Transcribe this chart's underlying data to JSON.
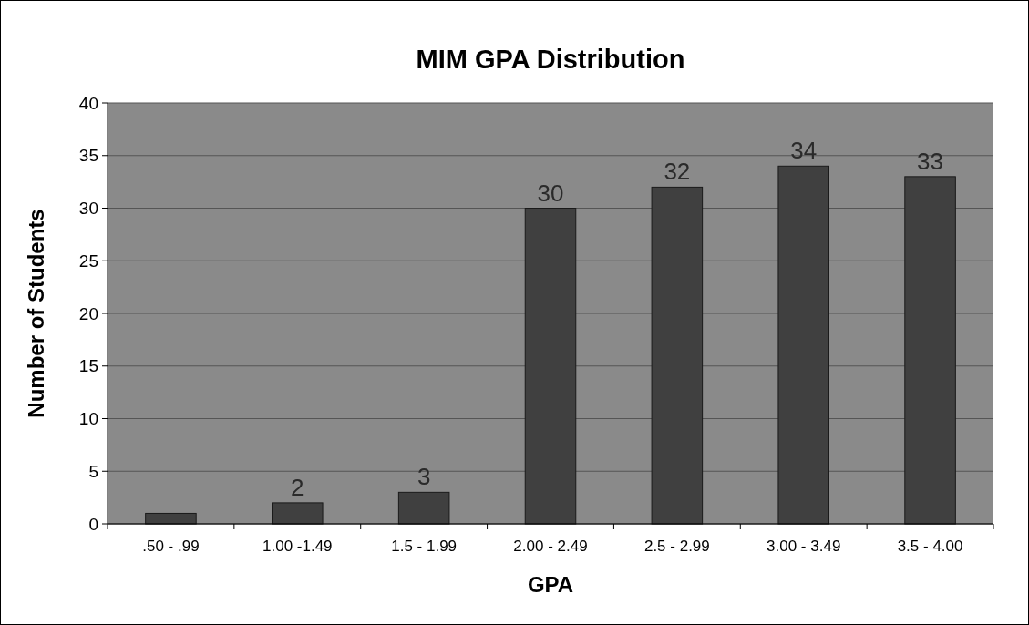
{
  "chart_data": {
    "type": "bar",
    "title": "MIM GPA Distribution",
    "xlabel": "GPA",
    "ylabel": "Number of Students",
    "categories": [
      ".50 - .99",
      "1.00 -1.49",
      "1.5 - 1.99",
      "2.00 - 2.49",
      "2.5 - 2.99",
      "3.00 - 3.49",
      "3.5 - 4.00"
    ],
    "values": [
      1,
      2,
      3,
      30,
      32,
      34,
      33
    ],
    "value_labels": [
      null,
      "2",
      "3",
      "30",
      "32",
      "34",
      "33"
    ],
    "color": "#404040",
    "ylim": [
      0,
      40
    ],
    "yticks": [
      0,
      5,
      10,
      15,
      20,
      25,
      30,
      35,
      40
    ],
    "grid": "y"
  }
}
